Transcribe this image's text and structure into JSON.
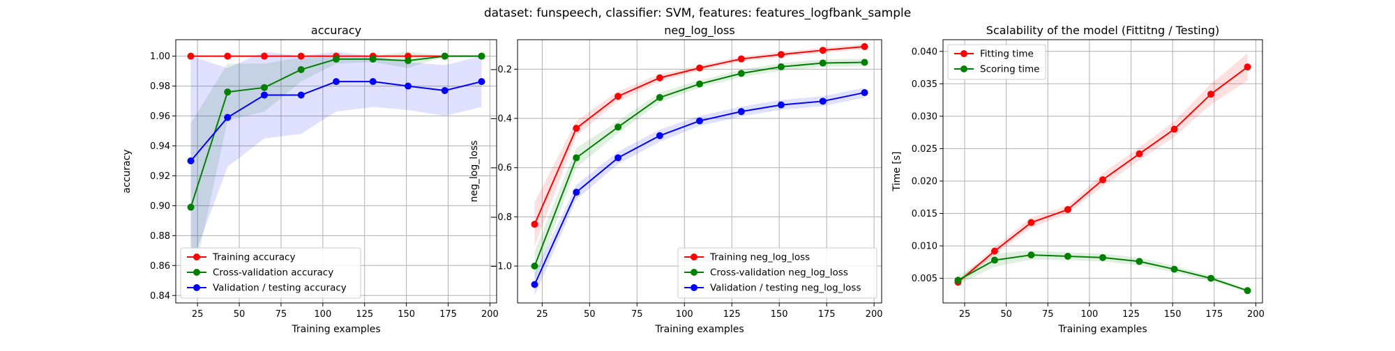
{
  "figure": {
    "suptitle": "dataset: funspeech, classifier: SVM, features: features_logfbank_sample"
  },
  "chart_data": [
    {
      "type": "line",
      "title": "accuracy",
      "xlabel": "Training examples",
      "ylabel": "accuracy",
      "xlim": [
        12,
        204
      ],
      "ylim": [
        0.835,
        1.011
      ],
      "xticks": [
        25,
        50,
        75,
        100,
        125,
        150,
        175,
        200
      ],
      "yticks": [
        0.84,
        0.86,
        0.88,
        0.9,
        0.92,
        0.94,
        0.96,
        0.98,
        1.0
      ],
      "ytick_labels": [
        "0.84",
        "0.86",
        "0.88",
        "0.90",
        "0.92",
        "0.94",
        "0.96",
        "0.98",
        "1.00"
      ],
      "grid": true,
      "legend_position": "lower-left",
      "x": [
        21,
        43,
        65,
        87,
        108,
        130,
        151,
        173,
        195
      ],
      "series": [
        {
          "name": "Training accuracy",
          "color": "#ff0000",
          "values": [
            1.0,
            1.0,
            1.0,
            1.0,
            1.0,
            1.0,
            1.0,
            1.0,
            1.0
          ],
          "lower": [
            1.0,
            1.0,
            1.0,
            1.0,
            1.0,
            1.0,
            1.0,
            1.0,
            1.0
          ],
          "upper": [
            1.0,
            1.0,
            1.0,
            1.0,
            1.0,
            1.0,
            1.0,
            1.0,
            1.0
          ]
        },
        {
          "name": "Cross-validation accuracy",
          "color": "#008000",
          "values": [
            0.899,
            0.976,
            0.979,
            0.991,
            0.998,
            0.998,
            0.997,
            1.0,
            1.0
          ],
          "lower": [
            0.843,
            0.957,
            0.963,
            0.983,
            0.995,
            0.996,
            0.992,
            1.0,
            1.0
          ],
          "upper": [
            0.955,
            0.995,
            0.995,
            0.999,
            1.0,
            1.0,
            1.003,
            1.0,
            1.0
          ]
        },
        {
          "name": "Validation / testing accuracy",
          "color": "#0000ff",
          "values": [
            0.93,
            0.959,
            0.974,
            0.974,
            0.983,
            0.983,
            0.98,
            0.977,
            0.983
          ],
          "lower": [
            0.86,
            0.926,
            0.945,
            0.948,
            0.963,
            0.966,
            0.964,
            0.96,
            0.966
          ],
          "upper": [
            1.0,
            0.992,
            1.003,
            1.0,
            1.003,
            1.0,
            0.996,
            0.994,
            1.0
          ]
        }
      ]
    },
    {
      "type": "line",
      "title": "neg_log_loss",
      "xlabel": "Training examples",
      "ylabel": "neg_log_loss",
      "xlim": [
        12,
        204
      ],
      "ylim": [
        -1.15,
        -0.08
      ],
      "xticks": [
        25,
        50,
        75,
        100,
        125,
        150,
        175,
        200
      ],
      "yticks": [
        -1.0,
        -0.8,
        -0.6,
        -0.4,
        -0.2
      ],
      "ytick_labels": [
        "−1.0",
        "−0.8",
        "−0.6",
        "−0.4",
        "−0.2"
      ],
      "grid": true,
      "legend_position": "lower-right",
      "x": [
        21,
        43,
        65,
        87,
        108,
        130,
        151,
        173,
        195
      ],
      "series": [
        {
          "name": "Training neg_log_loss",
          "color": "#ff0000",
          "values": [
            -0.83,
            -0.44,
            -0.31,
            -0.235,
            -0.195,
            -0.158,
            -0.14,
            -0.123,
            -0.108
          ],
          "lower": [
            -0.92,
            -0.47,
            -0.33,
            -0.25,
            -0.205,
            -0.168,
            -0.15,
            -0.133,
            -0.118
          ],
          "upper": [
            -0.74,
            -0.41,
            -0.29,
            -0.22,
            -0.185,
            -0.148,
            -0.13,
            -0.113,
            -0.098
          ]
        },
        {
          "name": "Cross-validation neg_log_loss",
          "color": "#008000",
          "values": [
            -1.0,
            -0.56,
            -0.435,
            -0.315,
            -0.26,
            -0.217,
            -0.19,
            -0.175,
            -0.172
          ],
          "lower": [
            -1.06,
            -0.6,
            -0.46,
            -0.335,
            -0.275,
            -0.232,
            -0.205,
            -0.19,
            -0.187
          ],
          "upper": [
            -0.94,
            -0.52,
            -0.41,
            -0.295,
            -0.245,
            -0.202,
            -0.175,
            -0.16,
            -0.157
          ]
        },
        {
          "name": "Validation / testing neg_log_loss",
          "color": "#0000ff",
          "values": [
            -1.075,
            -0.7,
            -0.56,
            -0.47,
            -0.41,
            -0.372,
            -0.345,
            -0.33,
            -0.295
          ],
          "lower": [
            -1.12,
            -0.73,
            -0.585,
            -0.495,
            -0.43,
            -0.392,
            -0.365,
            -0.35,
            -0.315
          ],
          "upper": [
            -1.03,
            -0.67,
            -0.535,
            -0.445,
            -0.39,
            -0.352,
            -0.325,
            -0.31,
            -0.275
          ]
        }
      ]
    },
    {
      "type": "line",
      "title": "Scalability of the model (Fittitng / Testing)",
      "xlabel": "Training examples",
      "ylabel": "Time [s]",
      "xlim": [
        12,
        204
      ],
      "ylim": [
        0.0012,
        0.0418
      ],
      "xticks": [
        25,
        50,
        75,
        100,
        125,
        150,
        175,
        200
      ],
      "yticks": [
        0.005,
        0.01,
        0.015,
        0.02,
        0.025,
        0.03,
        0.035,
        0.04
      ],
      "ytick_labels": [
        "0.005",
        "0.010",
        "0.015",
        "0.020",
        "0.025",
        "0.030",
        "0.035",
        "0.040"
      ],
      "grid": true,
      "legend_position": "upper-left",
      "x": [
        21,
        43,
        65,
        87,
        108,
        130,
        151,
        173,
        195
      ],
      "series": [
        {
          "name": "Fitting time",
          "color": "#ff0000",
          "values": [
            0.0044,
            0.0092,
            0.0136,
            0.0156,
            0.0202,
            0.0242,
            0.028,
            0.0334,
            0.0376
          ],
          "lower": [
            0.0041,
            0.0086,
            0.0128,
            0.015,
            0.0192,
            0.0232,
            0.0268,
            0.0318,
            0.0355
          ],
          "upper": [
            0.0047,
            0.0098,
            0.0144,
            0.0162,
            0.0212,
            0.0252,
            0.0292,
            0.035,
            0.0397
          ]
        },
        {
          "name": "Scoring time",
          "color": "#008000",
          "values": [
            0.0047,
            0.0078,
            0.0086,
            0.0084,
            0.0082,
            0.0076,
            0.0064,
            0.005,
            0.0031
          ],
          "lower": [
            0.004,
            0.0068,
            0.0079,
            0.0078,
            0.0076,
            0.007,
            0.0059,
            0.0046,
            0.0029
          ],
          "upper": [
            0.0054,
            0.0088,
            0.0093,
            0.009,
            0.0088,
            0.0082,
            0.0069,
            0.0054,
            0.0033
          ]
        }
      ]
    }
  ]
}
